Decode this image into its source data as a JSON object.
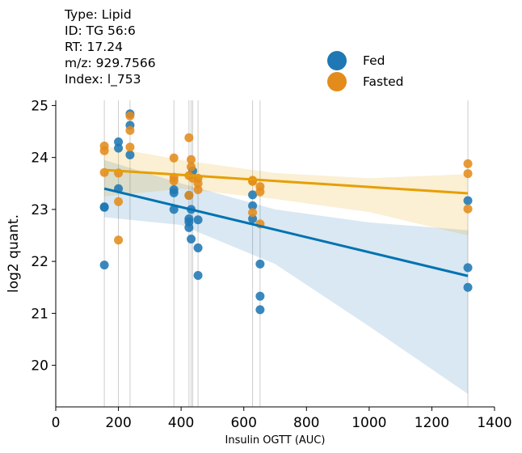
{
  "info": {
    "lines": [
      "Type: Lipid",
      "ID: TG 56:6",
      "RT: 17.24",
      "m/z: 929.7566",
      "Index: l_753"
    ]
  },
  "colors": {
    "fed": "#1f77b4",
    "fasted": "#e38c1c",
    "fed_line": "#0072b2",
    "fasted_line": "#e69f00"
  },
  "chart_data": {
    "type": "scatter",
    "xlabel": "Insulin OGTT (AUC)",
    "ylabel": "log2 quant.",
    "xlim": [
      0,
      1400
    ],
    "ylim": [
      19.2,
      25.1
    ],
    "xticks": [
      0,
      200,
      400,
      600,
      800,
      1000,
      1200,
      1400
    ],
    "yticks": [
      20,
      21,
      22,
      23,
      24,
      25
    ],
    "legend": {
      "placement": "top-right",
      "entries": [
        "Fed",
        "Fasted"
      ]
    },
    "vlines": [
      155,
      200,
      237,
      377,
      425,
      432,
      437,
      454,
      628,
      652,
      1315
    ],
    "series": [
      {
        "name": "Fed",
        "color": "#1f77b4",
        "points": [
          [
            155,
            23.05
          ],
          [
            155,
            23.04
          ],
          [
            155,
            21.93
          ],
          [
            200,
            24.3
          ],
          [
            200,
            24.18
          ],
          [
            200,
            23.4
          ],
          [
            237,
            24.84
          ],
          [
            237,
            24.62
          ],
          [
            237,
            24.05
          ],
          [
            377,
            23.38
          ],
          [
            377,
            23.32
          ],
          [
            377,
            23.0
          ],
          [
            425,
            23.27
          ],
          [
            425,
            22.82
          ],
          [
            425,
            22.76
          ],
          [
            425,
            22.65
          ],
          [
            432,
            23.0
          ],
          [
            432,
            22.43
          ],
          [
            437,
            23.74
          ],
          [
            454,
            22.8
          ],
          [
            454,
            22.26
          ],
          [
            454,
            21.73
          ],
          [
            628,
            23.28
          ],
          [
            628,
            23.07
          ],
          [
            628,
            22.82
          ],
          [
            652,
            21.95
          ],
          [
            652,
            21.33
          ],
          [
            652,
            21.07
          ],
          [
            1315,
            23.17
          ],
          [
            1315,
            21.88
          ],
          [
            1315,
            21.5
          ]
        ],
        "fit": {
          "x": [
            155,
            1315
          ],
          "y": [
            23.4,
            21.72
          ]
        }
      },
      {
        "name": "Fasted",
        "color": "#e38c1c",
        "points": [
          [
            155,
            24.22
          ],
          [
            155,
            24.13
          ],
          [
            155,
            23.71
          ],
          [
            200,
            23.7
          ],
          [
            200,
            23.15
          ],
          [
            200,
            22.41
          ],
          [
            237,
            24.8
          ],
          [
            237,
            24.52
          ],
          [
            237,
            24.2
          ],
          [
            377,
            23.99
          ],
          [
            377,
            23.62
          ],
          [
            377,
            23.55
          ],
          [
            425,
            24.38
          ],
          [
            425,
            23.65
          ],
          [
            425,
            23.27
          ],
          [
            432,
            23.96
          ],
          [
            432,
            23.82
          ],
          [
            437,
            23.6
          ],
          [
            454,
            23.6
          ],
          [
            454,
            23.5
          ],
          [
            454,
            23.38
          ],
          [
            628,
            23.56
          ],
          [
            628,
            23.54
          ],
          [
            628,
            22.94
          ],
          [
            652,
            23.44
          ],
          [
            652,
            23.34
          ],
          [
            652,
            22.72
          ],
          [
            1315,
            23.88
          ],
          [
            1315,
            23.69
          ],
          [
            1315,
            23.01
          ]
        ],
        "fit": {
          "x": [
            155,
            1315
          ],
          "y": [
            23.76,
            23.31
          ]
        }
      }
    ]
  }
}
